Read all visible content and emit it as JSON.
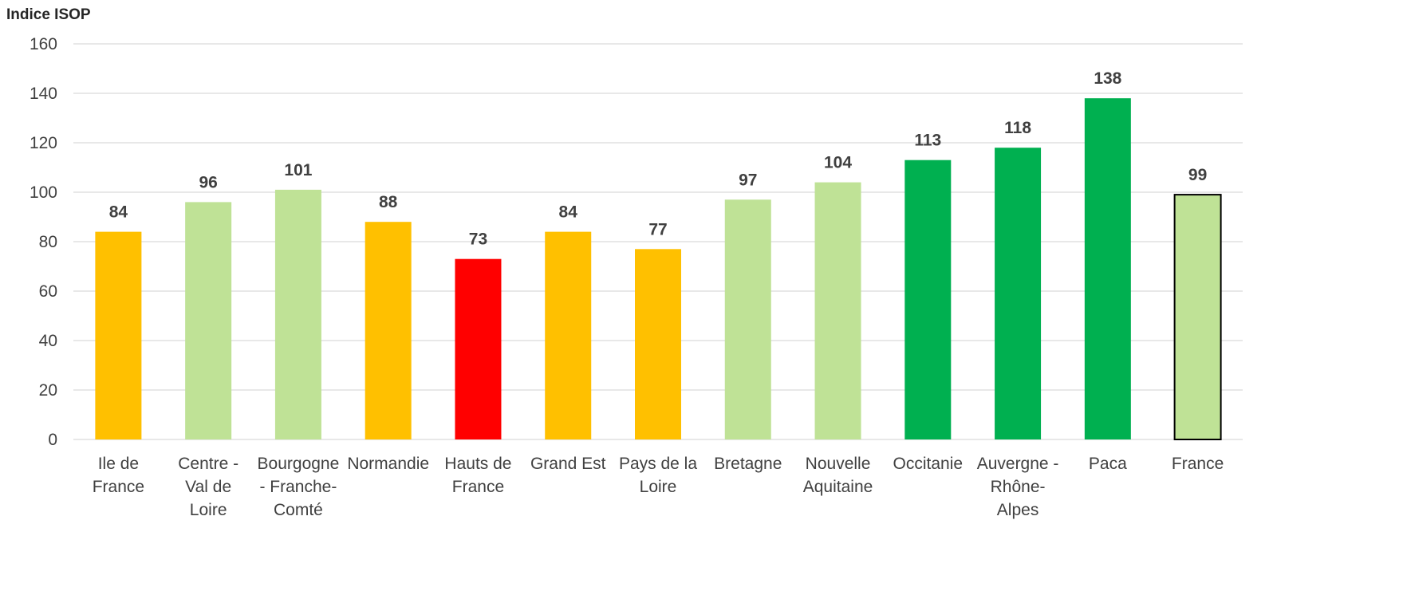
{
  "chart_data": {
    "type": "bar",
    "title": "",
    "ylabel": "Indice ISOP",
    "xlabel": "",
    "ylim": [
      0,
      160
    ],
    "yticks": [
      0,
      20,
      40,
      60,
      80,
      100,
      120,
      140,
      160
    ],
    "grid": true,
    "legend": "none",
    "categories": [
      [
        "Ile de",
        "France"
      ],
      [
        "Centre -",
        "Val de",
        "Loire"
      ],
      [
        "Bourgogne",
        "- Franche-",
        "Comté"
      ],
      [
        "Normandie"
      ],
      [
        "Hauts de",
        "France"
      ],
      [
        "Grand Est"
      ],
      [
        "Pays de la",
        "Loire"
      ],
      [
        "Bretagne"
      ],
      [
        "Nouvelle",
        "Aquitaine"
      ],
      [
        "Occitanie"
      ],
      [
        "Auvergne -",
        "Rhône-",
        "Alpes"
      ],
      [
        "Paca"
      ],
      [
        "France"
      ]
    ],
    "values": [
      84,
      96,
      101,
      88,
      73,
      84,
      77,
      97,
      104,
      113,
      118,
      138,
      99
    ],
    "bar_colors": [
      "#FFC000",
      "#BFE296",
      "#BFE296",
      "#FFC000",
      "#FF0000",
      "#FFC000",
      "#FFC000",
      "#BFE296",
      "#BFE296",
      "#00B050",
      "#00B050",
      "#00B050",
      "#BFE296"
    ],
    "bar_outlined": [
      false,
      false,
      false,
      false,
      false,
      false,
      false,
      false,
      false,
      false,
      false,
      false,
      true
    ]
  }
}
